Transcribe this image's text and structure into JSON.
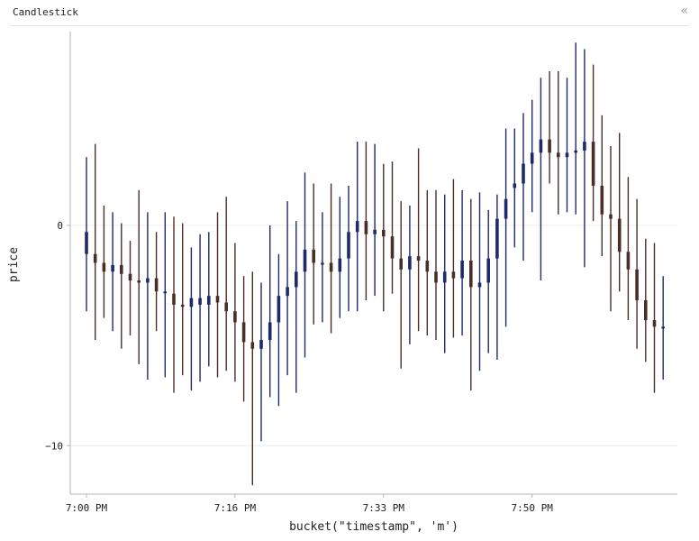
{
  "panel": {
    "title": "Candlestick",
    "collapse_icon": "double-chevron-left-icon"
  },
  "colors": {
    "up": "#1f2a6b",
    "down": "#4a2e28",
    "grid": "#ececec",
    "axis": "#b5b5b5"
  },
  "chart_data": {
    "type": "candlestick",
    "xlabel": "bucket(\"timestamp\", 'm')",
    "ylabel": "price",
    "x_ticks": [
      "7:00 PM",
      "7:16 PM",
      "7:33 PM",
      "7:50 PM"
    ],
    "y_ticks": [
      0,
      -10
    ],
    "ylim": [
      -12.2,
      8.8
    ],
    "grid": true,
    "series": [
      {
        "minute": 0,
        "open": -1.3,
        "high": 3.1,
        "low": -3.9,
        "close": -0.3
      },
      {
        "minute": 1,
        "open": -1.3,
        "high": 3.7,
        "low": -5.2,
        "close": -1.7
      },
      {
        "minute": 2,
        "open": -1.7,
        "high": 0.9,
        "low": -4.2,
        "close": -2.1
      },
      {
        "minute": 3,
        "open": -2.1,
        "high": 0.6,
        "low": -4.8,
        "close": -1.8
      },
      {
        "minute": 4,
        "open": -1.8,
        "high": 0.1,
        "low": -5.6,
        "close": -2.2
      },
      {
        "minute": 5,
        "open": -2.2,
        "high": -0.7,
        "low": -5.0,
        "close": -2.5
      },
      {
        "minute": 6,
        "open": -2.5,
        "high": 1.6,
        "low": -6.3,
        "close": -2.6
      },
      {
        "minute": 7,
        "open": -2.6,
        "high": 0.6,
        "low": -7.0,
        "close": -2.4
      },
      {
        "minute": 8,
        "open": -2.4,
        "high": -0.3,
        "low": -4.8,
        "close": -3.0
      },
      {
        "minute": 9,
        "open": -3.0,
        "high": 0.6,
        "low": -6.9,
        "close": -3.0
      },
      {
        "minute": 10,
        "open": -3.1,
        "high": 0.4,
        "low": -7.6,
        "close": -3.6
      },
      {
        "minute": 11,
        "open": -3.6,
        "high": 0.1,
        "low": -6.8,
        "close": -3.7
      },
      {
        "minute": 12,
        "open": -3.7,
        "high": -1.0,
        "low": -7.5,
        "close": -3.3
      },
      {
        "minute": 13,
        "open": -3.6,
        "high": -0.4,
        "low": -7.1,
        "close": -3.3
      },
      {
        "minute": 14,
        "open": -3.6,
        "high": -0.3,
        "low": -6.4,
        "close": -3.2
      },
      {
        "minute": 15,
        "open": -3.2,
        "high": 0.6,
        "low": -6.9,
        "close": -3.5
      },
      {
        "minute": 16,
        "open": -3.5,
        "high": 1.3,
        "low": -6.6,
        "close": -3.9
      },
      {
        "minute": 17,
        "open": -3.9,
        "high": -0.8,
        "low": -7.1,
        "close": -4.4
      },
      {
        "minute": 18,
        "open": -4.4,
        "high": -2.3,
        "low": -8.0,
        "close": -5.3
      },
      {
        "minute": 19,
        "open": -5.3,
        "high": -2.1,
        "low": -11.8,
        "close": -5.6
      },
      {
        "minute": 20,
        "open": -5.6,
        "high": -2.6,
        "low": -9.8,
        "close": -5.2
      },
      {
        "minute": 21,
        "open": -5.2,
        "high": 0.0,
        "low": -7.8,
        "close": -4.4
      },
      {
        "minute": 22,
        "open": -4.4,
        "high": -1.3,
        "low": -8.2,
        "close": -3.2
      },
      {
        "minute": 23,
        "open": -3.2,
        "high": 1.1,
        "low": -6.8,
        "close": -2.8
      },
      {
        "minute": 24,
        "open": -2.8,
        "high": 0.2,
        "low": -7.6,
        "close": -2.1
      },
      {
        "minute": 25,
        "open": -2.1,
        "high": 2.4,
        "low": -6.0,
        "close": -1.1
      },
      {
        "minute": 26,
        "open": -1.1,
        "high": 1.9,
        "low": -4.5,
        "close": -1.7
      },
      {
        "minute": 27,
        "open": -1.7,
        "high": 0.6,
        "low": -4.4,
        "close": -1.7
      },
      {
        "minute": 28,
        "open": -1.7,
        "high": 1.9,
        "low": -4.9,
        "close": -2.1
      },
      {
        "minute": 29,
        "open": -2.1,
        "high": 1.3,
        "low": -4.2,
        "close": -1.5
      },
      {
        "minute": 30,
        "open": -1.5,
        "high": 1.8,
        "low": -3.9,
        "close": -0.3
      },
      {
        "minute": 31,
        "open": -0.3,
        "high": 3.8,
        "low": -3.9,
        "close": 0.2
      },
      {
        "minute": 32,
        "open": 0.2,
        "high": 3.8,
        "low": -3.4,
        "close": -0.4
      },
      {
        "minute": 33,
        "open": -0.4,
        "high": 3.7,
        "low": -3.2,
        "close": -0.2
      },
      {
        "minute": 34,
        "open": -0.2,
        "high": 2.8,
        "low": -3.9,
        "close": -0.5
      },
      {
        "minute": 35,
        "open": -0.5,
        "high": 2.9,
        "low": -3.1,
        "close": -1.5
      },
      {
        "minute": 36,
        "open": -1.5,
        "high": 1.1,
        "low": -6.5,
        "close": -2.0
      },
      {
        "minute": 37,
        "open": -2.0,
        "high": 0.9,
        "low": -5.4,
        "close": -1.4
      },
      {
        "minute": 38,
        "open": -1.4,
        "high": 3.5,
        "low": -4.8,
        "close": -1.6
      },
      {
        "minute": 39,
        "open": -1.6,
        "high": 1.6,
        "low": -5.0,
        "close": -2.1
      },
      {
        "minute": 40,
        "open": -2.1,
        "high": 1.6,
        "low": -5.2,
        "close": -2.6
      },
      {
        "minute": 41,
        "open": -2.6,
        "high": 1.4,
        "low": -5.8,
        "close": -2.1
      },
      {
        "minute": 42,
        "open": -2.1,
        "high": 2.1,
        "low": -5.1,
        "close": -2.4
      },
      {
        "minute": 43,
        "open": -2.4,
        "high": 1.6,
        "low": -5.0,
        "close": -1.6
      },
      {
        "minute": 44,
        "open": -1.6,
        "high": 1.2,
        "low": -7.5,
        "close": -2.8
      },
      {
        "minute": 45,
        "open": -2.8,
        "high": 1.5,
        "low": -6.6,
        "close": -2.6
      },
      {
        "minute": 46,
        "open": -2.6,
        "high": 0.7,
        "low": -5.8,
        "close": -1.5
      },
      {
        "minute": 47,
        "open": -1.5,
        "high": 1.4,
        "low": -6.1,
        "close": 0.3
      },
      {
        "minute": 48,
        "open": 0.3,
        "high": 4.4,
        "low": -4.6,
        "close": 1.2
      },
      {
        "minute": 49,
        "open": 1.7,
        "high": 4.4,
        "low": -1.0,
        "close": 1.9
      },
      {
        "minute": 50,
        "open": 1.9,
        "high": 5.1,
        "low": -1.6,
        "close": 2.8
      },
      {
        "minute": 51,
        "open": 2.8,
        "high": 5.7,
        "low": 0.6,
        "close": 3.3
      },
      {
        "minute": 52,
        "open": 3.3,
        "high": 6.7,
        "low": -2.5,
        "close": 3.9
      },
      {
        "minute": 53,
        "open": 3.9,
        "high": 7.0,
        "low": 1.9,
        "close": 3.3
      },
      {
        "minute": 54,
        "open": 3.3,
        "high": 7.0,
        "low": 0.5,
        "close": 3.1
      },
      {
        "minute": 55,
        "open": 3.1,
        "high": 6.7,
        "low": 0.6,
        "close": 3.3
      },
      {
        "minute": 56,
        "open": 3.3,
        "high": 8.3,
        "low": 0.5,
        "close": 3.4
      },
      {
        "minute": 57,
        "open": 3.4,
        "high": 8.0,
        "low": -1.9,
        "close": 3.8
      },
      {
        "minute": 58,
        "open": 3.8,
        "high": 7.3,
        "low": 0.2,
        "close": 1.8
      },
      {
        "minute": 59,
        "open": 1.8,
        "high": 5.0,
        "low": -1.4,
        "close": 0.5
      },
      {
        "minute": 60,
        "open": 0.5,
        "high": 3.6,
        "low": -3.9,
        "close": 0.3
      },
      {
        "minute": 61,
        "open": 0.3,
        "high": 4.2,
        "low": -3.0,
        "close": -1.2
      },
      {
        "minute": 62,
        "open": -1.2,
        "high": 2.2,
        "low": -4.3,
        "close": -2.0
      },
      {
        "minute": 63,
        "open": -2.0,
        "high": 1.2,
        "low": -5.6,
        "close": -3.4
      },
      {
        "minute": 64,
        "open": -3.4,
        "high": -0.6,
        "low": -6.2,
        "close": -4.3
      },
      {
        "minute": 65,
        "open": -4.3,
        "high": -0.8,
        "low": -7.6,
        "close": -4.6
      },
      {
        "minute": 66,
        "open": -4.6,
        "high": -2.3,
        "low": -7.0,
        "close": -4.6
      }
    ]
  }
}
